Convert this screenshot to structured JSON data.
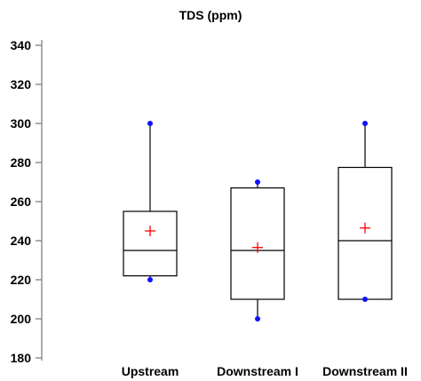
{
  "chart_data": {
    "type": "box",
    "title": "TDS (ppm)",
    "xlabel": "",
    "ylabel": "",
    "ylim": [
      180,
      340
    ],
    "yticks": [
      180,
      200,
      220,
      240,
      260,
      280,
      300,
      320,
      340
    ],
    "yticklabels": [
      "180",
      "200",
      "220",
      "240",
      "260",
      "280",
      "300",
      "320",
      "340"
    ],
    "categories": [
      "Upstream",
      "Downstream I",
      "Downstream II"
    ],
    "boxes": [
      {
        "name": "Upstream",
        "min": 220,
        "q1": 222,
        "median": 235,
        "q3": 255,
        "max": 300,
        "mean": 245,
        "points": [
          220,
          300
        ]
      },
      {
        "name": "Downstream I",
        "min": 200,
        "q1": 210,
        "median": 235,
        "q3": 267,
        "max": 270,
        "mean": 236.5,
        "points": [
          200,
          270
        ]
      },
      {
        "name": "Downstream II",
        "min": 210,
        "q1": 210,
        "median": 240,
        "q3": 277.5,
        "max": 300,
        "mean": 246.5,
        "points": [
          210,
          300
        ]
      }
    ],
    "grid": false,
    "legend": "none",
    "colors": {
      "mean_marker": "#ff0000",
      "points": "#1010ff",
      "box": "#000000",
      "axis": "#808080"
    }
  }
}
